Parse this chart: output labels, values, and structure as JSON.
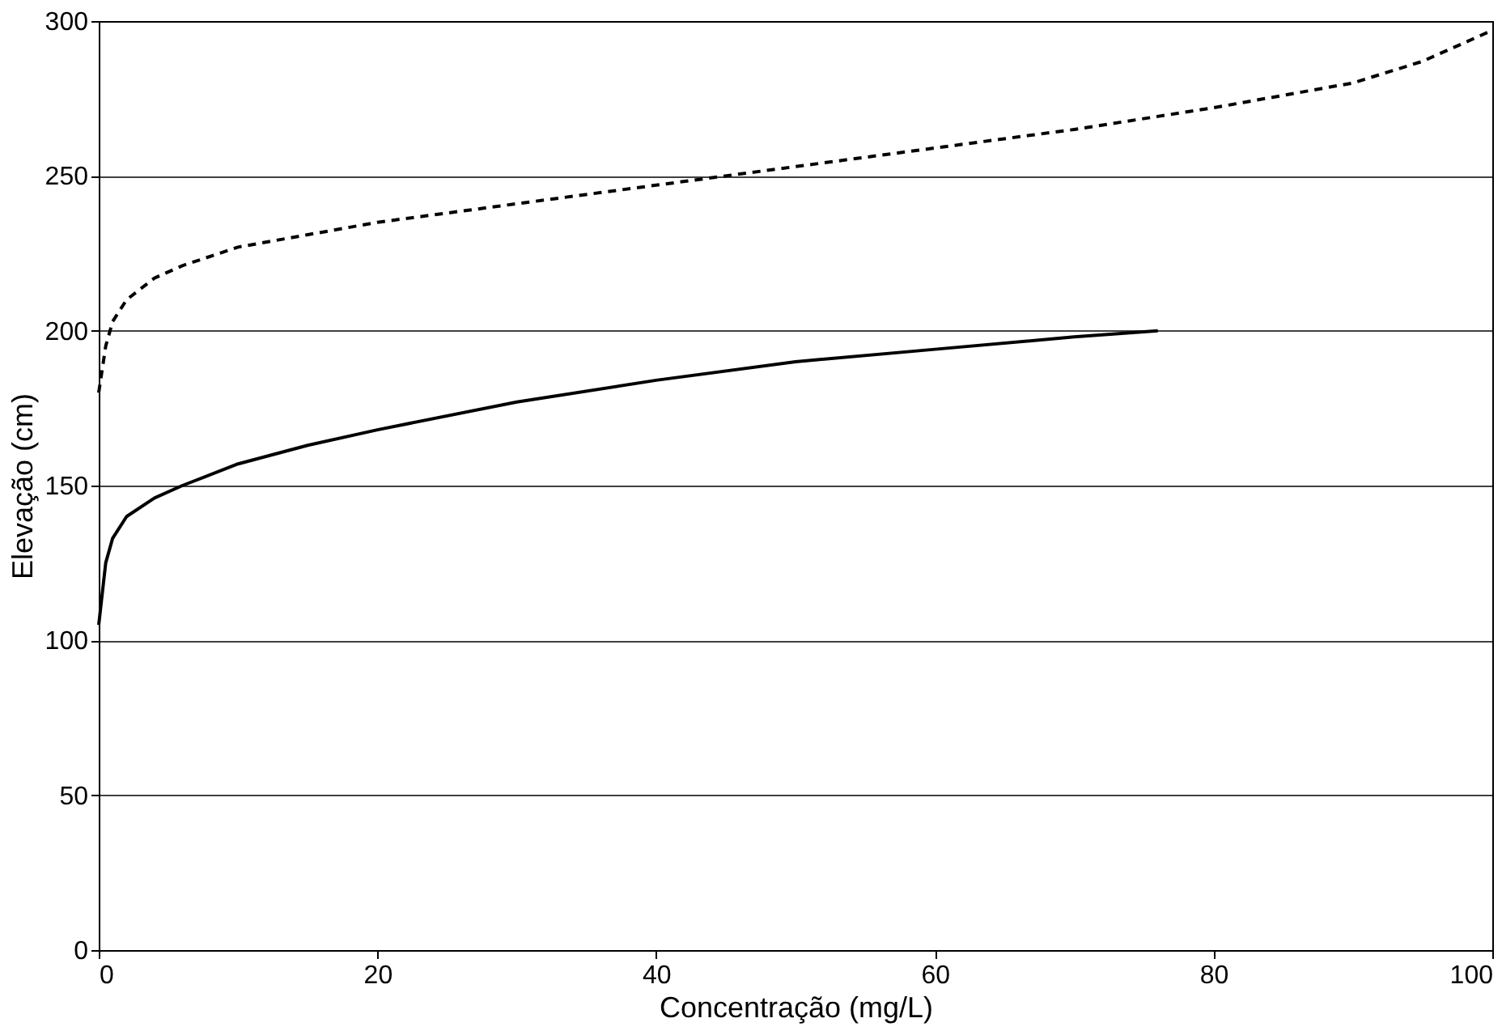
{
  "chart_data": {
    "type": "line",
    "xlabel": "Concentração (mg/L)",
    "ylabel": "Elevação (cm)",
    "xlim": [
      0,
      100
    ],
    "xticks": [
      0,
      20,
      40,
      60,
      80,
      100
    ],
    "ylim": [
      0,
      300
    ],
    "yticks": [
      0,
      50,
      100,
      150,
      200,
      250,
      300
    ],
    "grid": "y",
    "marker": "none",
    "series": [
      {
        "color": "#000000",
        "line_style": "solid",
        "x": [
          0,
          0.5,
          1,
          2,
          4,
          6,
          10,
          15,
          20,
          30,
          40,
          50,
          60,
          70,
          76
        ],
        "values": [
          105,
          125,
          133,
          140,
          146,
          150,
          157,
          163,
          168,
          177,
          184,
          190,
          194,
          198,
          200
        ]
      },
      {
        "color": "#000000",
        "line_style": "dashed",
        "x": [
          0,
          0.5,
          1,
          2,
          4,
          6,
          10,
          15,
          20,
          30,
          40,
          50,
          60,
          70,
          80,
          90,
          95,
          100
        ],
        "values": [
          180,
          195,
          203,
          210,
          217,
          221,
          227,
          231,
          235,
          241,
          247,
          253,
          259,
          265,
          272,
          280,
          287,
          297
        ]
      }
    ]
  }
}
